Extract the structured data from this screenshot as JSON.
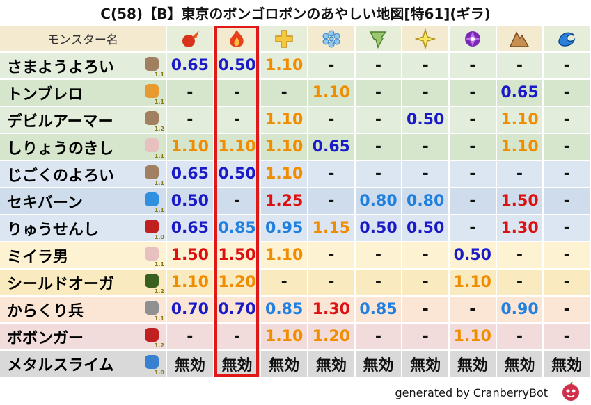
{
  "title": "C(58)【B】東京のボンゴロボンのあやしい地図[特61](ギラ)",
  "table": {
    "header": "モンスター名",
    "rows": [
      {
        "name": "さまようよろい",
        "level": "1.1",
        "bg": "#e2eedb",
        "cells": [
          "0.65",
          "0.50",
          "1.10",
          "-",
          "-",
          "-",
          "-",
          "-",
          "-"
        ]
      },
      {
        "name": "トンブレロ",
        "level": "1.1",
        "bg": "#d6e6cc",
        "cells": [
          "-",
          "-",
          "-",
          "1.10",
          "-",
          "-",
          "-",
          "0.65",
          "-"
        ]
      },
      {
        "name": "デビルアーマー",
        "level": "1.2",
        "bg": "#e2eedb",
        "cells": [
          "-",
          "-",
          "1.10",
          "-",
          "-",
          "0.50",
          "-",
          "1.10",
          "-"
        ]
      },
      {
        "name": "しりょうのきし",
        "level": "1.1",
        "bg": "#d6e6cc",
        "cells": [
          "1.10",
          "1.10",
          "1.10",
          "0.65",
          "-",
          "-",
          "-",
          "1.10",
          "-"
        ]
      },
      {
        "name": "じごくのよろい",
        "level": "1.1",
        "bg": "#dce6f2",
        "cells": [
          "0.65",
          "0.50",
          "1.10",
          "-",
          "-",
          "-",
          "-",
          "-",
          "-"
        ]
      },
      {
        "name": "セキバーン",
        "level": "1.1",
        "bg": "#cfdcec",
        "cells": [
          "0.50",
          "-",
          "1.25",
          "-",
          "0.80",
          "0.80",
          "-",
          "1.50",
          "-"
        ]
      },
      {
        "name": "りゅうせんし",
        "level": "1.0",
        "bg": "#dce6f2",
        "cells": [
          "0.65",
          "0.85",
          "0.95",
          "1.15",
          "0.50",
          "0.50",
          "-",
          "1.30",
          "-"
        ]
      },
      {
        "name": "ミイラ男",
        "level": "1.1",
        "bg": "#fdf3d2",
        "cells": [
          "1.50",
          "1.50",
          "1.10",
          "-",
          "-",
          "-",
          "0.50",
          "-",
          "-"
        ]
      },
      {
        "name": "シールドオーガ",
        "level": "1.2",
        "bg": "#f9ebbf",
        "cells": [
          "1.10",
          "1.20",
          "-",
          "-",
          "-",
          "-",
          "1.10",
          "-",
          "-"
        ]
      },
      {
        "name": "からくり兵",
        "level": "1.1",
        "bg": "#fbe6d6",
        "cells": [
          "0.70",
          "0.70",
          "0.85",
          "1.30",
          "0.85",
          "-",
          "-",
          "0.90",
          "-"
        ]
      },
      {
        "name": "ボボンガー",
        "level": "1.2",
        "bg": "#f2dcdb",
        "cells": [
          "-",
          "-",
          "1.10",
          "1.20",
          "-",
          "-",
          "1.10",
          "-",
          "-"
        ]
      },
      {
        "name": "メタルスライム",
        "level": "1.0",
        "bg": "#d9d9d9",
        "cells": [
          "無効",
          "無効",
          "無効",
          "無効",
          "無効",
          "無効",
          "無効",
          "無効",
          "無効"
        ]
      }
    ]
  },
  "footer": "generated by CranberryBot"
}
